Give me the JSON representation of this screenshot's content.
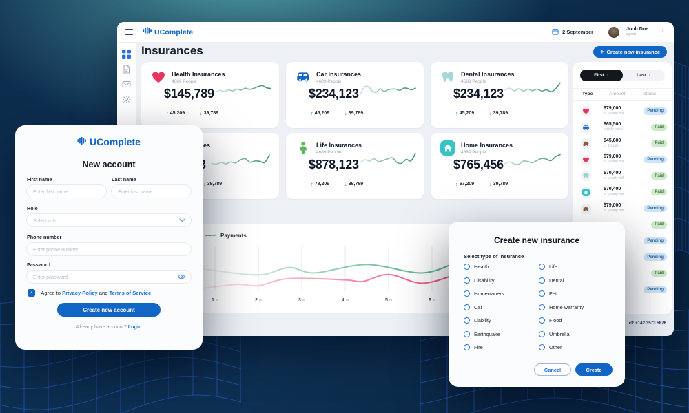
{
  "app": {
    "name": "UComplete"
  },
  "background": {
    "base_color": "#0d2c4d",
    "glow_color": "#4f9ba3",
    "mesh_color": "#2b6be0"
  },
  "dashboard": {
    "topbar": {
      "logo_text": "UComplete",
      "date": "2 September",
      "user_name": "Jonh Doe",
      "user_role": "agent"
    },
    "sidebar_icons": [
      "dashboard-grid-icon",
      "document-icon",
      "mail-icon",
      "settings-gear-icon"
    ],
    "page_title": "Insurances",
    "create_button_label": "Create new insurance",
    "cards": [
      {
        "title": "Health Insurances",
        "people": "4689 People",
        "amount": "$145,789",
        "up": "45,209",
        "down": "39,789",
        "icon": "heart-icon",
        "icon_color": "#e8355f",
        "spark": [
          30,
          42,
          34,
          46,
          38,
          50,
          44,
          56,
          48,
          55,
          66,
          72,
          58,
          54
        ]
      },
      {
        "title": "Car Insurances",
        "people": "4689 People",
        "amount": "$234,123",
        "up": "45,209",
        "down": "39,789",
        "icon": "car-icon",
        "icon_color": "#1266c6",
        "spark": [
          18,
          62,
          66,
          38,
          30,
          52,
          36,
          46,
          50,
          50,
          42,
          56,
          54,
          46,
          56
        ]
      },
      {
        "title": "Dental Insurances",
        "people": "4689 People",
        "amount": "$234,123",
        "up": "45,209",
        "down": "39,789",
        "icon": "tooth-icon",
        "icon_color": "#a5d6d8",
        "spark": [
          44,
          56,
          40,
          52,
          38,
          50,
          40,
          50,
          38,
          46,
          34,
          52,
          90
        ]
      },
      {
        "partial": true,
        "title_fragment": "es",
        "amount_fragment": "3",
        "down": "39,789",
        "spark": [
          28,
          24,
          34,
          26,
          38,
          32,
          52,
          58,
          36,
          44,
          42,
          34,
          82
        ]
      },
      {
        "title": "Life Insurances",
        "people": "4689 People",
        "amount": "$878,123",
        "up": "78,209",
        "down": "39,789",
        "icon": "person-icon",
        "icon_color": "#5cb85c",
        "spark": [
          38,
          52,
          44,
          58,
          40,
          48,
          58,
          64,
          34,
          30,
          54,
          44,
          92
        ]
      },
      {
        "title": "Home Insurances",
        "people": "4689 People",
        "amount": "$765,456",
        "up": "67,209",
        "down": "39,789",
        "icon": "house-icon",
        "icon_color": "#38c3c9",
        "spark": [
          28,
          38,
          26,
          24,
          44,
          40,
          34,
          48,
          60,
          56,
          46,
          72,
          84
        ]
      }
    ],
    "table": {
      "toggle_first": "First",
      "toggle_last": "Last",
      "headers": [
        "Type",
        "Amount",
        "Status"
      ],
      "rows": [
        {
          "icon": "heart-icon",
          "icon_color": "#e8355f",
          "amount": "$79,000",
          "note": "in yearly bill",
          "status": "Pending"
        },
        {
          "icon": "car-icon",
          "icon_color": "#1266c6",
          "amount": "$65,500",
          "note": "totally cash",
          "status": "Paid"
        },
        {
          "icon": "dog-icon",
          "icon_color": "#8a5a3c",
          "amount": "$45,600",
          "note": "in 15 bills",
          "status": "Paid"
        },
        {
          "icon": "heart-icon",
          "icon_color": "#e8355f",
          "amount": "$79,000",
          "note": "in yearly bill",
          "status": "Pending"
        },
        {
          "icon": "tooth-icon",
          "icon_color": "#9fd0d4",
          "amount": "$70,400",
          "note": "in yearly bill",
          "status": "Paid"
        },
        {
          "icon": "house-icon",
          "icon_color": "#38c3c9",
          "amount": "$70,400",
          "note": "in yearly bill",
          "status": "Paid"
        },
        {
          "icon": "dog-icon",
          "icon_color": "#8a5a3c",
          "amount": "$79,000",
          "note": "in yearly bill",
          "status": "Pending"
        },
        {
          "status": "Paid"
        },
        {
          "status": "Pending"
        },
        {
          "status": "Pending"
        },
        {
          "status": "Paid"
        },
        {
          "status": "Pending"
        }
      ],
      "status_styles": {
        "Pending": {
          "bg": "#cfe5f7",
          "text": "#2d6da3"
        },
        "Paid": {
          "bg": "#cfe9cb",
          "text": "#3f7d3f"
        }
      }
    },
    "footer_contact_visible": "ct: +142 3573 5876"
  },
  "chart_data": {
    "type": "line",
    "legend": "Payments",
    "categories": [
      "1 w",
      "2 w",
      "3 w",
      "4 w",
      "5 w",
      "6 w"
    ],
    "ylim": [
      0,
      100
    ],
    "grid": "vertical",
    "legend_position": "top-left",
    "series": [
      {
        "name": "payments-upper",
        "color": "#4caf7d",
        "x": [
          0.75,
          2,
          2.7,
          3.3,
          4.5,
          5.8,
          6.7
        ],
        "values": [
          60,
          46,
          64,
          51,
          71,
          51,
          84
        ]
      },
      {
        "name": "payments-lower",
        "color": "#f14d76",
        "x": [
          0.75,
          1.5,
          2,
          2.7,
          4,
          4.4,
          5,
          5.8,
          6.7
        ],
        "values": [
          14,
          23,
          20,
          37,
          34,
          30,
          47,
          26,
          53
        ]
      }
    ]
  },
  "account_modal": {
    "logo_text": "UComplete",
    "title": "New account",
    "fields": {
      "first_name": {
        "label": "First name",
        "placeholder": "Enter first name"
      },
      "last_name": {
        "label": "Last name",
        "placeholder": "Enter last name"
      },
      "role": {
        "label": "Role",
        "placeholder": "Select role"
      },
      "phone": {
        "label": "Phone number",
        "placeholder": "Enter phone number"
      },
      "password": {
        "label": "Password",
        "placeholder": "Enter password"
      }
    },
    "agree": {
      "prefix": "I Agree to",
      "privacy": "Privacy Policy",
      "conjunction": "and",
      "terms": "Terms of Service",
      "checked": true
    },
    "submit_label": "Create new account",
    "footer_text": "Already have account?",
    "footer_link": "Login"
  },
  "insurance_modal": {
    "title": "Create new insurance",
    "select_label": "Select type of insurance",
    "options": [
      "Health",
      "Life",
      "Disability",
      "Dental",
      "Homeowners",
      "Pet",
      "Car",
      "Home warranty",
      "Liability",
      "Flood",
      "Earthquake",
      "Umbrella",
      "Fire",
      "Other"
    ],
    "cancel_label": "Cancel",
    "create_label": "Create"
  }
}
